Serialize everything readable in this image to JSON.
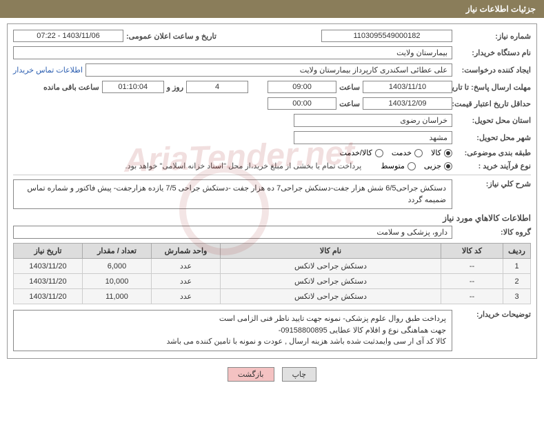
{
  "header": {
    "title": "جزئیات اطلاعات نیاز"
  },
  "fields": {
    "needNumber": {
      "label": "شماره نیاز:",
      "value": "1103095549000182"
    },
    "announceDate": {
      "label": "تاریخ و ساعت اعلان عمومی:",
      "value": "1403/11/06 - 07:22"
    },
    "buyerOrg": {
      "label": "نام دستگاه خریدار:",
      "value": "بیمارستان ولایت"
    },
    "requester": {
      "label": "ایجاد کننده درخواست:",
      "value": "علی عطائی اسکندری کارپرداز بیمارستان ولایت"
    },
    "contactLink": "اطلاعات تماس خریدار",
    "responseDeadline": {
      "label": "مهلت ارسال پاسخ: تا تاریخ:",
      "date": "1403/11/10",
      "timeLabel": "ساعت",
      "time": "09:00"
    },
    "remaining": {
      "days": "4",
      "daysLabel": "روز و",
      "time": "01:10:04",
      "suffix": "ساعت باقی مانده"
    },
    "priceValidity": {
      "label": "حداقل تاریخ اعتبار قیمت: تا تاریخ:",
      "date": "1403/12/09",
      "timeLabel": "ساعت",
      "time": "00:00"
    },
    "deliveryProvince": {
      "label": "استان محل تحویل:",
      "value": "خراسان رضوی"
    },
    "deliveryCity": {
      "label": "شهر محل تحویل:",
      "value": "مشهد"
    },
    "subjectCategory": {
      "label": "طبقه بندی موضوعی:",
      "options": [
        {
          "label": "کالا",
          "checked": true
        },
        {
          "label": "خدمت",
          "checked": false
        },
        {
          "label": "کالا/خدمت",
          "checked": false
        }
      ]
    },
    "purchaseType": {
      "label": "نوع فرآیند خرید :",
      "options": [
        {
          "label": "جزیی",
          "checked": true
        },
        {
          "label": "متوسط",
          "checked": false
        }
      ],
      "note": "پرداخت تمام یا بخشی از مبلغ خرید،از محل \"اسناد خزانه اسلامی\" خواهد بود."
    }
  },
  "generalDesc": {
    "label": "شرح کلي نیاز:",
    "text": "دستکش جراحی6/5 شش هزار جفت-دستکش جراحی7 ده هزار جفت -دستکش جراحی 7/5 یازده  هزارجفت- پیش فاکتور و شماره تماس ضمیمه گردد"
  },
  "goodsSection": {
    "title": "اطلاعات کالاهاي مورد نیاز",
    "groupLabel": "گروه کالا:",
    "groupValue": "دارو، پزشکی و سلامت"
  },
  "table": {
    "headers": [
      "ردیف",
      "کد کالا",
      "نام کالا",
      "واحد شمارش",
      "تعداد / مقدار",
      "تاریخ نیاز"
    ],
    "rows": [
      [
        "1",
        "--",
        "دستکش جراحی لاتکس",
        "عدد",
        "6,000",
        "1403/11/20"
      ],
      [
        "2",
        "--",
        "دستکش جراحی لاتکس",
        "عدد",
        "10,000",
        "1403/11/20"
      ],
      [
        "3",
        "--",
        "دستکش جراحی لاتکس",
        "عدد",
        "11,000",
        "1403/11/20"
      ]
    ]
  },
  "buyerNotes": {
    "label": "توضیحات خریدار:",
    "lines": [
      "پرداخت طبق روال علوم پزشکی-  نمونه جهت تایید ناظر فنی الزامی است",
      "جهت هماهنگی نوع و اقلام کالا  عطایی 09158800895-",
      "کالا کد آی ار سی وایمدثبت شده باشد هزینه ارسال , عودت و نمونه با تامین کننده می باشد"
    ]
  },
  "buttons": {
    "print": "چاپ",
    "back": "بازگشت"
  },
  "colors": {
    "headerBg": "#8a7d5a",
    "thBg": "#dddddd",
    "tdBg": "#f5f5f5",
    "btnBack": "#f4c2c2"
  }
}
